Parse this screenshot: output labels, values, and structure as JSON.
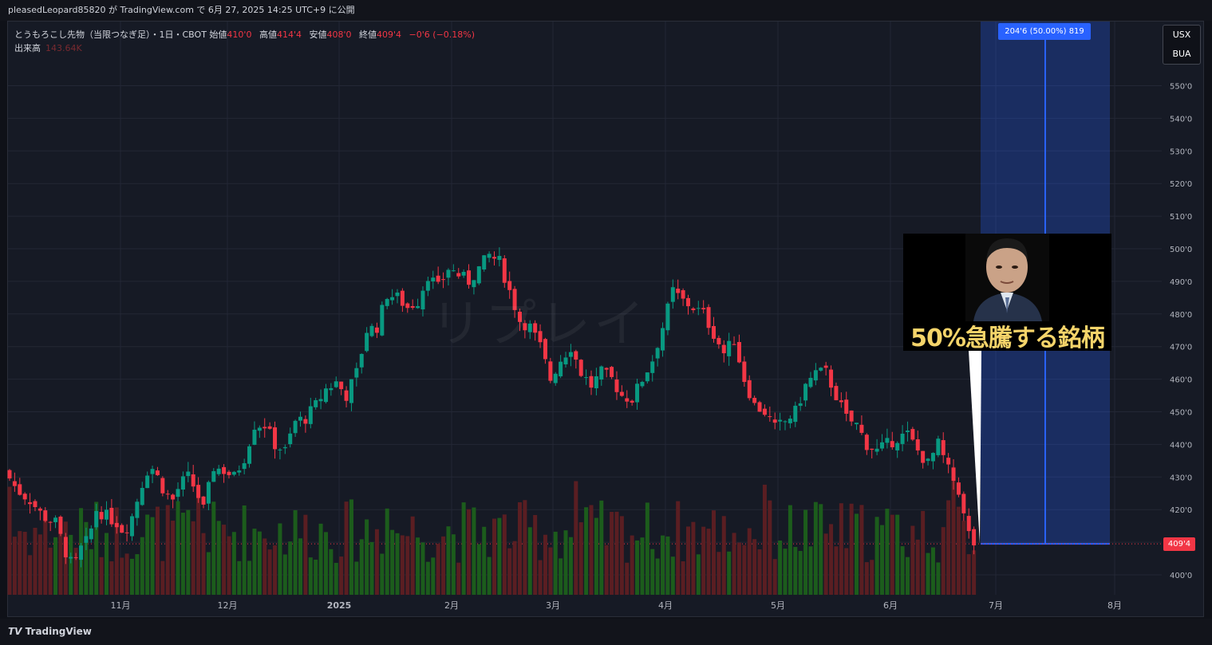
{
  "header": {
    "publish_line": "pleasedLeopard85820 が TradingView.com で 6月 27, 2025 14:25 UTC+9 に公開"
  },
  "legend": {
    "symbol_line": "とうもろこし先物（当限つなぎ足）・1日・CBOT",
    "open_label": "始値",
    "open_value": "410'0",
    "high_label": "高値",
    "high_value": "414'4",
    "low_label": "安値",
    "low_value": "408'0",
    "close_label": "終値",
    "close_value": "409'4",
    "change_value": "−0'6 (−0.18%)",
    "volume_label": "出来高",
    "volume_value": "143.64K"
  },
  "watermark": "リプレイ",
  "overlay": {
    "caption": "50%急騰する銘柄",
    "projection_label": "204'6 (50.00%) 819"
  },
  "currency_box": {
    "line1": "USX",
    "line2": "BUA"
  },
  "last_price_tag": "409'4",
  "footer": {
    "brand": "TradingView"
  },
  "colors": {
    "up": "#089981",
    "down": "#f23645",
    "vol_up": "#1c5c1c",
    "vol_down": "#5a1e22",
    "projection": "#2962ff"
  },
  "chart_data": {
    "type": "candlestick",
    "y_ticks": [
      "400'0",
      "410'0",
      "420'0",
      "430'0",
      "440'0",
      "450'0",
      "460'0",
      "470'0",
      "480'0",
      "490'0",
      "500'0",
      "510'0",
      "520'0",
      "530'0",
      "540'0",
      "550'0"
    ],
    "ylim": [
      395,
      555
    ],
    "x_ticks": [
      "11月",
      "12月",
      "2025",
      "2月",
      "3月",
      "4月",
      "5月",
      "6月",
      "7月",
      "8月"
    ],
    "close_path": [
      [
        0,
        432
      ],
      [
        5,
        426
      ],
      [
        10,
        423
      ],
      [
        15,
        418
      ],
      [
        20,
        416
      ],
      [
        24,
        407
      ],
      [
        27,
        402
      ],
      [
        30,
        408
      ],
      [
        33,
        411
      ],
      [
        36,
        420
      ],
      [
        40,
        418
      ],
      [
        44,
        416
      ],
      [
        47,
        413
      ],
      [
        50,
        418
      ],
      [
        54,
        428
      ],
      [
        57,
        434
      ],
      [
        60,
        430
      ],
      [
        63,
        425
      ],
      [
        66,
        423
      ],
      [
        69,
        428
      ],
      [
        72,
        430
      ],
      [
        75,
        426
      ],
      [
        78,
        420
      ],
      [
        82,
        433
      ],
      [
        86,
        432
      ],
      [
        90,
        430
      ],
      [
        94,
        436
      ],
      [
        98,
        446
      ],
      [
        102,
        446
      ],
      [
        106,
        440
      ],
      [
        110,
        438
      ],
      [
        114,
        447
      ],
      [
        118,
        448
      ],
      [
        122,
        452
      ],
      [
        126,
        457
      ],
      [
        130,
        459
      ],
      [
        134,
        455
      ],
      [
        138,
        462
      ],
      [
        142,
        475
      ],
      [
        146,
        476
      ],
      [
        150,
        486
      ],
      [
        154,
        485
      ],
      [
        158,
        482
      ],
      [
        162,
        484
      ],
      [
        166,
        492
      ],
      [
        170,
        488
      ],
      [
        174,
        494
      ],
      [
        178,
        492
      ],
      [
        182,
        490
      ],
      [
        186,
        494
      ],
      [
        190,
        498
      ],
      [
        194,
        496
      ],
      [
        198,
        487
      ],
      [
        202,
        478
      ],
      [
        206,
        476
      ],
      [
        210,
        470
      ],
      [
        214,
        460
      ],
      [
        218,
        466
      ],
      [
        222,
        470
      ],
      [
        226,
        462
      ],
      [
        230,
        458
      ],
      [
        234,
        462
      ],
      [
        238,
        460
      ],
      [
        242,
        455
      ],
      [
        246,
        454
      ],
      [
        250,
        460
      ],
      [
        254,
        466
      ],
      [
        258,
        476
      ],
      [
        262,
        487
      ],
      [
        266,
        484
      ],
      [
        270,
        482
      ],
      [
        274,
        480
      ],
      [
        278,
        474
      ],
      [
        282,
        468
      ],
      [
        286,
        472
      ],
      [
        290,
        460
      ],
      [
        294,
        452
      ],
      [
        298,
        450
      ],
      [
        302,
        445
      ],
      [
        306,
        447
      ],
      [
        310,
        450
      ],
      [
        314,
        458
      ],
      [
        318,
        462
      ],
      [
        322,
        462
      ],
      [
        326,
        455
      ],
      [
        330,
        448
      ],
      [
        334,
        446
      ],
      [
        338,
        440
      ],
      [
        342,
        438
      ],
      [
        346,
        440
      ],
      [
        350,
        442
      ],
      [
        354,
        443
      ],
      [
        358,
        438
      ],
      [
        362,
        434
      ],
      [
        366,
        440
      ],
      [
        370,
        432
      ],
      [
        374,
        426
      ],
      [
        377,
        414
      ],
      [
        380,
        409.5
      ]
    ],
    "last_price": 409.5,
    "open": 410.0,
    "high": 414.5,
    "low": 408.0,
    "close": 409.5,
    "change": -0.75,
    "change_pct": -0.18,
    "volume": "143.64K",
    "projection": {
      "from": 409.5,
      "to": 614.25,
      "change": "204'6",
      "pct": 50.0,
      "bars": 819
    }
  }
}
